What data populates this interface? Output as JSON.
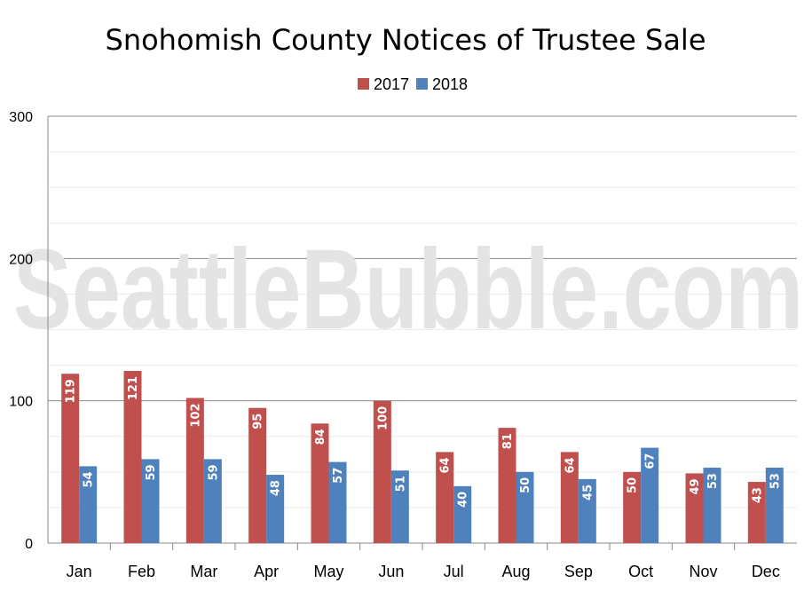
{
  "watermark": "SeattleBubble.com",
  "colors": {
    "s2017": "#c0504d",
    "s2018": "#4f81bd"
  },
  "chart_data": {
    "type": "bar",
    "title": "Snohomish County Notices of Trustee Sale",
    "categories": [
      "Jan",
      "Feb",
      "Mar",
      "Apr",
      "May",
      "Jun",
      "Jul",
      "Aug",
      "Sep",
      "Oct",
      "Nov",
      "Dec"
    ],
    "series": [
      {
        "name": "2017",
        "color": "#c0504d",
        "values": [
          119,
          121,
          102,
          95,
          84,
          100,
          64,
          81,
          64,
          50,
          49,
          43
        ]
      },
      {
        "name": "2018",
        "color": "#4f81bd",
        "values": [
          54,
          59,
          59,
          48,
          57,
          51,
          40,
          50,
          45,
          67,
          53,
          53
        ]
      }
    ],
    "ylim": [
      0,
      300
    ],
    "yticks": [
      "0",
      "100",
      "200",
      "300"
    ],
    "grid": true,
    "legend": "top-center",
    "data_labels": true
  }
}
